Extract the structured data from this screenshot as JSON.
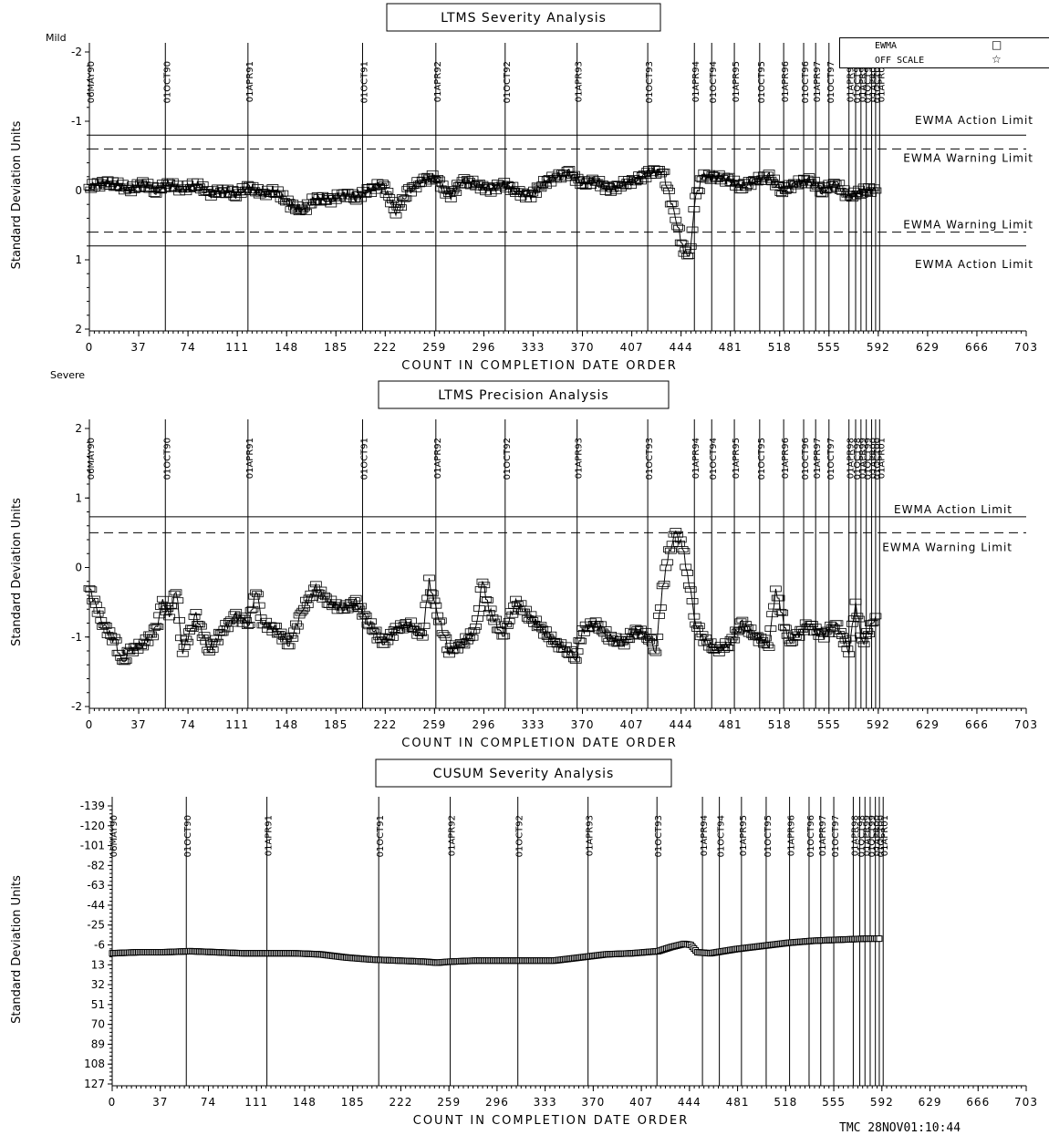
{
  "footer": "TMC 28NOV01:10:44",
  "legend": [
    {
      "label": "EWMA",
      "symbol": "□"
    },
    {
      "label": "OFF SCALE",
      "symbol": "☆"
    }
  ],
  "chart_data": [
    {
      "type": "scatter",
      "title": "LTMS Severity Analysis",
      "ylabel": "Standard Deviation Units",
      "xlabel": "COUNT IN COMPLETION DATE ORDER",
      "y_top_label": "Mild",
      "y_bottom_label": "Severe",
      "ylim": [
        -2,
        2
      ],
      "y_inverted": true,
      "yticks": [
        "-2",
        "-1",
        "0",
        "1",
        "2"
      ],
      "xlim": [
        0,
        703
      ],
      "xticks": [
        0,
        37,
        74,
        111,
        148,
        185,
        222,
        259,
        296,
        333,
        370,
        407,
        444,
        481,
        518,
        555,
        592,
        629,
        666,
        703
      ],
      "date_markers": [
        {
          "label": "06MAY90",
          "x": 0
        },
        {
          "label": "01OCT90",
          "x": 57
        },
        {
          "label": "01APR91",
          "x": 119
        },
        {
          "label": "01OCT91",
          "x": 205
        },
        {
          "label": "01APR92",
          "x": 260
        },
        {
          "label": "01OCT92",
          "x": 312
        },
        {
          "label": "01APR93",
          "x": 366
        },
        {
          "label": "01OCT93",
          "x": 419
        },
        {
          "label": "01APR94",
          "x": 454
        },
        {
          "label": "01OCT94",
          "x": 467
        },
        {
          "label": "01APR95",
          "x": 484
        },
        {
          "label": "01OCT95",
          "x": 503
        },
        {
          "label": "01APR96",
          "x": 521
        },
        {
          "label": "01OCT96",
          "x": 536
        },
        {
          "label": "01APR97",
          "x": 545
        },
        {
          "label": "01OCT97",
          "x": 555
        },
        {
          "label": "01APR98",
          "x": 570
        },
        {
          "label": "01OCT98",
          "x": 575
        },
        {
          "label": "01APR99",
          "x": 579
        },
        {
          "label": "01OCT99",
          "x": 583
        },
        {
          "label": "01APR00",
          "x": 587
        },
        {
          "label": "01OCT00",
          "x": 590
        },
        {
          "label": "01APR01",
          "x": 593
        }
      ],
      "limits": [
        {
          "label": "EWMA Action Limit",
          "y": -0.8,
          "style": "solid"
        },
        {
          "label": "EWMA Warning Limit",
          "y": -0.6,
          "style": "dashed"
        },
        {
          "label": "EWMA Warning Limit",
          "y": 0.6,
          "style": "dashed"
        },
        {
          "label": "EWMA Action Limit",
          "y": 0.8,
          "style": "solid"
        }
      ],
      "series": [
        {
          "name": "EWMA",
          "values": [
            [
              0,
              -0.05
            ],
            [
              10,
              -0.1
            ],
            [
              20,
              -0.1
            ],
            [
              30,
              0.0
            ],
            [
              40,
              -0.1
            ],
            [
              50,
              0.0
            ],
            [
              60,
              -0.1
            ],
            [
              70,
              0.0
            ],
            [
              80,
              -0.1
            ],
            [
              90,
              0.05
            ],
            [
              100,
              0.0
            ],
            [
              110,
              0.05
            ],
            [
              120,
              -0.05
            ],
            [
              130,
              0.05
            ],
            [
              140,
              0.0
            ],
            [
              150,
              0.2
            ],
            [
              160,
              0.3
            ],
            [
              170,
              0.1
            ],
            [
              180,
              0.15
            ],
            [
              190,
              0.05
            ],
            [
              200,
              0.1
            ],
            [
              210,
              0.0
            ],
            [
              220,
              -0.1
            ],
            [
              230,
              0.3
            ],
            [
              240,
              0.0
            ],
            [
              250,
              -0.15
            ],
            [
              260,
              -0.2
            ],
            [
              270,
              0.1
            ],
            [
              280,
              -0.15
            ],
            [
              290,
              -0.1
            ],
            [
              300,
              0.0
            ],
            [
              310,
              -0.1
            ],
            [
              320,
              0.0
            ],
            [
              330,
              0.1
            ],
            [
              340,
              -0.1
            ],
            [
              350,
              -0.2
            ],
            [
              360,
              -0.25
            ],
            [
              370,
              -0.1
            ],
            [
              380,
              -0.15
            ],
            [
              390,
              0.0
            ],
            [
              400,
              -0.1
            ],
            [
              410,
              -0.15
            ],
            [
              420,
              -0.25
            ],
            [
              430,
              -0.3
            ],
            [
              440,
              0.4
            ],
            [
              445,
              0.8
            ],
            [
              450,
              1.0
            ],
            [
              455,
              0.1
            ],
            [
              460,
              -0.2
            ],
            [
              470,
              -0.2
            ],
            [
              480,
              -0.15
            ],
            [
              490,
              -0.05
            ],
            [
              500,
              -0.15
            ],
            [
              510,
              -0.2
            ],
            [
              520,
              0.0
            ],
            [
              530,
              -0.1
            ],
            [
              540,
              -0.15
            ],
            [
              550,
              0.0
            ],
            [
              560,
              -0.1
            ],
            [
              570,
              0.1
            ],
            [
              580,
              0.0
            ],
            [
              590,
              0.0
            ]
          ]
        }
      ]
    },
    {
      "type": "scatter",
      "title": "LTMS Precision Analysis",
      "ylabel": "Standard Deviation Units",
      "xlabel": "COUNT IN COMPLETION DATE ORDER",
      "ylim": [
        -2,
        2
      ],
      "yticks": [
        "2",
        "1",
        "0",
        "-1",
        "-2"
      ],
      "xlim": [
        0,
        703
      ],
      "xticks": [
        0,
        37,
        74,
        111,
        148,
        185,
        222,
        259,
        296,
        333,
        370,
        407,
        444,
        481,
        518,
        555,
        592,
        629,
        666,
        703
      ],
      "date_markers": [
        {
          "label": "06MAY90",
          "x": 0
        },
        {
          "label": "01OCT90",
          "x": 57
        },
        {
          "label": "01APR91",
          "x": 119
        },
        {
          "label": "01OCT91",
          "x": 205
        },
        {
          "label": "01APR92",
          "x": 260
        },
        {
          "label": "01OCT92",
          "x": 312
        },
        {
          "label": "01APR93",
          "x": 366
        },
        {
          "label": "01OCT93",
          "x": 419
        },
        {
          "label": "01APR94",
          "x": 454
        },
        {
          "label": "01OCT94",
          "x": 467
        },
        {
          "label": "01APR95",
          "x": 484
        },
        {
          "label": "01OCT95",
          "x": 503
        },
        {
          "label": "01APR96",
          "x": 521
        },
        {
          "label": "01OCT96",
          "x": 536
        },
        {
          "label": "01APR97",
          "x": 545
        },
        {
          "label": "01OCT97",
          "x": 555
        },
        {
          "label": "01APR98",
          "x": 570
        },
        {
          "label": "01OCT98",
          "x": 575
        },
        {
          "label": "01APR99",
          "x": 579
        },
        {
          "label": "01OCT99",
          "x": 583
        },
        {
          "label": "01APR00",
          "x": 587
        },
        {
          "label": "01OCT00",
          "x": 590
        },
        {
          "label": "01APR01",
          "x": 593
        }
      ],
      "limits": [
        {
          "label": "EWMA Action Limit",
          "y": 0.73,
          "style": "solid"
        },
        {
          "label": "EWMA Warning Limit",
          "y": 0.5,
          "style": "dashed"
        }
      ],
      "series": [
        {
          "name": "EWMA",
          "values": [
            [
              0,
              -0.3
            ],
            [
              10,
              -0.8
            ],
            [
              20,
              -1.1
            ],
            [
              25,
              -1.4
            ],
            [
              30,
              -1.2
            ],
            [
              40,
              -1.1
            ],
            [
              50,
              -0.9
            ],
            [
              55,
              -0.5
            ],
            [
              60,
              -0.7
            ],
            [
              65,
              -0.3
            ],
            [
              70,
              -1.2
            ],
            [
              80,
              -0.7
            ],
            [
              90,
              -1.2
            ],
            [
              100,
              -0.9
            ],
            [
              110,
              -0.7
            ],
            [
              120,
              -0.8
            ],
            [
              125,
              -0.3
            ],
            [
              130,
              -0.8
            ],
            [
              140,
              -0.9
            ],
            [
              150,
              -1.1
            ],
            [
              160,
              -0.6
            ],
            [
              170,
              -0.3
            ],
            [
              180,
              -0.5
            ],
            [
              190,
              -0.6
            ],
            [
              200,
              -0.5
            ],
            [
              210,
              -0.8
            ],
            [
              220,
              -1.1
            ],
            [
              230,
              -0.9
            ],
            [
              240,
              -0.8
            ],
            [
              250,
              -1.0
            ],
            [
              255,
              -0.2
            ],
            [
              260,
              -0.6
            ],
            [
              270,
              -1.2
            ],
            [
              280,
              -1.1
            ],
            [
              290,
              -0.9
            ],
            [
              295,
              -0.2
            ],
            [
              300,
              -0.6
            ],
            [
              310,
              -1.0
            ],
            [
              320,
              -0.5
            ],
            [
              330,
              -0.7
            ],
            [
              340,
              -0.9
            ],
            [
              350,
              -1.1
            ],
            [
              360,
              -1.2
            ],
            [
              365,
              -1.3
            ],
            [
              370,
              -0.9
            ],
            [
              380,
              -0.8
            ],
            [
              390,
              -1.0
            ],
            [
              400,
              -1.1
            ],
            [
              410,
              -0.9
            ],
            [
              420,
              -1.0
            ],
            [
              425,
              -1.2
            ],
            [
              430,
              -0.3
            ],
            [
              435,
              0.2
            ],
            [
              440,
              0.5
            ],
            [
              445,
              0.3
            ],
            [
              450,
              -0.2
            ],
            [
              455,
              -0.8
            ],
            [
              460,
              -1.0
            ],
            [
              470,
              -1.2
            ],
            [
              480,
              -1.1
            ],
            [
              490,
              -0.8
            ],
            [
              500,
              -1.0
            ],
            [
              510,
              -1.1
            ],
            [
              515,
              -0.3
            ],
            [
              520,
              -0.7
            ],
            [
              525,
              -1.1
            ],
            [
              530,
              -1.0
            ],
            [
              540,
              -0.8
            ],
            [
              550,
              -1.0
            ],
            [
              560,
              -0.8
            ],
            [
              570,
              -1.2
            ],
            [
              575,
              -0.5
            ],
            [
              580,
              -1.1
            ],
            [
              590,
              -0.7
            ]
          ]
        }
      ]
    },
    {
      "type": "line",
      "title": "CUSUM Severity Analysis",
      "ylabel": "Standard Deviation Units",
      "xlabel": "COUNT IN COMPLETION DATE ORDER",
      "ylim": [
        -139,
        127
      ],
      "y_inverted": true,
      "yticks": [
        "-139",
        "-120",
        "-101",
        "-82",
        "-63",
        "-44",
        "-25",
        "-6",
        "13",
        "32",
        "51",
        "70",
        "89",
        "108",
        "127"
      ],
      "xlim": [
        0,
        703
      ],
      "xticks": [
        0,
        37,
        74,
        111,
        148,
        185,
        222,
        259,
        296,
        333,
        370,
        407,
        444,
        481,
        518,
        555,
        592,
        629,
        666,
        703
      ],
      "date_markers": [
        {
          "label": "06MAY90",
          "x": 0
        },
        {
          "label": "01OCT90",
          "x": 57
        },
        {
          "label": "01APR91",
          "x": 119
        },
        {
          "label": "01OCT91",
          "x": 205
        },
        {
          "label": "01APR92",
          "x": 260
        },
        {
          "label": "01OCT92",
          "x": 312
        },
        {
          "label": "01APR93",
          "x": 366
        },
        {
          "label": "01OCT93",
          "x": 419
        },
        {
          "label": "01APR94",
          "x": 454
        },
        {
          "label": "01OCT94",
          "x": 467
        },
        {
          "label": "01APR95",
          "x": 484
        },
        {
          "label": "01OCT95",
          "x": 503
        },
        {
          "label": "01APR96",
          "x": 521
        },
        {
          "label": "01OCT96",
          "x": 536
        },
        {
          "label": "01APR97",
          "x": 545
        },
        {
          "label": "01OCT97",
          "x": 555
        },
        {
          "label": "01APR98",
          "x": 570
        },
        {
          "label": "01OCT98",
          "x": 575
        },
        {
          "label": "01APR99",
          "x": 579
        },
        {
          "label": "01OCT99",
          "x": 583
        },
        {
          "label": "01APR00",
          "x": 587
        },
        {
          "label": "01OCT00",
          "x": 590
        },
        {
          "label": "01APR01",
          "x": 593
        }
      ],
      "series": [
        {
          "name": "CUSUM",
          "values": [
            [
              0,
              2
            ],
            [
              20,
              1
            ],
            [
              40,
              1
            ],
            [
              60,
              0
            ],
            [
              80,
              1
            ],
            [
              100,
              2
            ],
            [
              120,
              2
            ],
            [
              140,
              2
            ],
            [
              160,
              3
            ],
            [
              180,
              6
            ],
            [
              200,
              8
            ],
            [
              220,
              9
            ],
            [
              240,
              10
            ],
            [
              250,
              11
            ],
            [
              260,
              10
            ],
            [
              280,
              9
            ],
            [
              300,
              9
            ],
            [
              320,
              9
            ],
            [
              340,
              9
            ],
            [
              360,
              6
            ],
            [
              380,
              3
            ],
            [
              400,
              2
            ],
            [
              420,
              0
            ],
            [
              430,
              -4
            ],
            [
              440,
              -7
            ],
            [
              445,
              -6
            ],
            [
              450,
              1
            ],
            [
              460,
              2
            ],
            [
              480,
              -2
            ],
            [
              500,
              -5
            ],
            [
              520,
              -8
            ],
            [
              540,
              -10
            ],
            [
              560,
              -11
            ],
            [
              580,
              -12
            ],
            [
              590,
              -12
            ]
          ]
        }
      ]
    }
  ]
}
